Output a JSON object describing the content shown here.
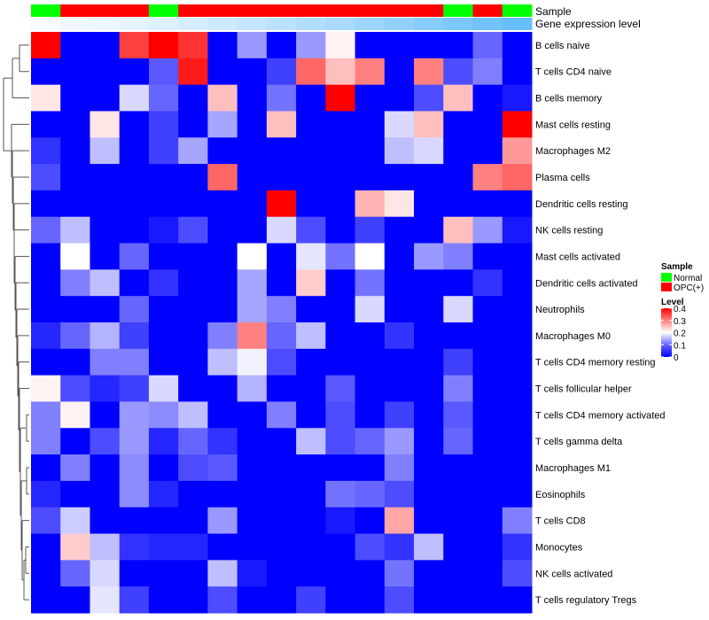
{
  "chart_data": {
    "type": "heatmap",
    "annotation_labels": {
      "sample": "Sample",
      "expression": "Gene expression level"
    },
    "rows": [
      "B cells naive",
      "T cells CD4 naive",
      "B cells memory",
      "Mast cells resting",
      "Macrophages M2",
      "Plasma cells",
      "Dendritic cells resting",
      "NK cells resting",
      "Mast cells activated",
      "Dendritic cells activated",
      "Neutrophils",
      "Macrophages M0",
      "T cells CD4 memory resting",
      "T cells follicular helper",
      "T cells CD4 memory activated",
      "T cells gamma delta",
      "Macrophages M1",
      "Eosinophils",
      "T cells CD8",
      "Monocytes",
      "NK cells activated",
      "T cells regulatory  Tregs"
    ],
    "samples": [
      "Normal",
      "OPC(+)",
      "OPC(+)",
      "OPC(+)",
      "Normal",
      "OPC(+)",
      "OPC(+)",
      "OPC(+)",
      "OPC(+)",
      "OPC(+)",
      "OPC(+)",
      "OPC(+)",
      "OPC(+)",
      "OPC(+)",
      "Normal",
      "OPC(+)",
      "Normal"
    ],
    "expression_level": [
      0.05,
      0.08,
      0.1,
      0.13,
      0.16,
      0.2,
      0.24,
      0.28,
      0.32,
      0.36,
      0.4,
      0.45,
      0.5,
      0.55,
      0.6,
      0.65,
      0.7
    ],
    "values": [
      [
        0.4,
        0,
        0,
        0.35,
        0.4,
        0.36,
        0,
        0.12,
        0,
        0.12,
        0.21,
        0,
        0,
        0,
        0,
        0.08,
        0
      ],
      [
        0,
        0,
        0,
        0,
        0.07,
        0.38,
        0,
        0,
        0.05,
        0.32,
        0.25,
        0.3,
        0,
        0.3,
        0.06,
        0.1,
        0
      ],
      [
        0.22,
        0,
        0,
        0.17,
        0.08,
        0,
        0.25,
        0,
        0.09,
        0,
        0.4,
        0,
        0,
        0.06,
        0.25,
        0,
        0.02
      ],
      [
        0,
        0,
        0.22,
        0,
        0.05,
        0,
        0.13,
        0,
        0.25,
        0,
        0,
        0,
        0.17,
        0.25,
        0,
        0,
        0.4
      ],
      [
        0.04,
        0,
        0.15,
        0,
        0.05,
        0.13,
        0,
        0,
        0,
        0,
        0,
        0,
        0.15,
        0.17,
        0,
        0,
        0.28
      ],
      [
        0.06,
        0,
        0,
        0,
        0,
        0,
        0.32,
        0,
        0,
        0,
        0,
        0,
        0,
        0,
        0,
        0.3,
        0.32
      ],
      [
        0,
        0,
        0,
        0,
        0,
        0,
        0,
        0,
        0.4,
        0,
        0,
        0.26,
        0.22,
        0,
        0,
        0,
        0
      ],
      [
        0.08,
        0.15,
        0,
        0,
        0.02,
        0.06,
        0,
        0,
        0.17,
        0.06,
        0,
        0.05,
        0,
        0,
        0.25,
        0.12,
        0.02
      ],
      [
        0,
        0.2,
        0,
        0.08,
        0,
        0,
        0,
        0.2,
        0,
        0.18,
        0.09,
        0.2,
        0,
        0.12,
        0.1,
        0,
        0
      ],
      [
        0,
        0.1,
        0.15,
        0,
        0.04,
        0,
        0,
        0.13,
        0,
        0.24,
        0,
        0.09,
        0,
        0,
        0,
        0.04,
        0
      ],
      [
        0,
        0,
        0,
        0.08,
        0,
        0,
        0,
        0.13,
        0.1,
        0,
        0,
        0.17,
        0,
        0,
        0.17,
        0,
        0
      ],
      [
        0.03,
        0.08,
        0.14,
        0.05,
        0,
        0,
        0.1,
        0.3,
        0.08,
        0.15,
        0,
        0,
        0.04,
        0,
        0,
        0,
        0
      ],
      [
        0,
        0,
        0.1,
        0.1,
        0,
        0,
        0.15,
        0.19,
        0.06,
        0,
        0,
        0,
        0,
        0,
        0.05,
        0,
        0
      ],
      [
        0.21,
        0.06,
        0.03,
        0.05,
        0.17,
        0,
        0,
        0.14,
        0,
        0,
        0.07,
        0,
        0,
        0,
        0.1,
        0,
        0
      ],
      [
        0.1,
        0.21,
        0,
        0.12,
        0.11,
        0.15,
        0,
        0,
        0.1,
        0,
        0.06,
        0,
        0.05,
        0,
        0.07,
        0,
        0
      ],
      [
        0.1,
        0,
        0.06,
        0.12,
        0.03,
        0.08,
        0.04,
        0,
        0,
        0.15,
        0.06,
        0.08,
        0.12,
        0,
        0.08,
        0,
        0
      ],
      [
        0,
        0.1,
        0,
        0.11,
        0,
        0.06,
        0.07,
        0,
        0,
        0,
        0,
        0,
        0.1,
        0,
        0,
        0,
        0
      ],
      [
        0.03,
        0,
        0,
        0.11,
        0.03,
        0,
        0,
        0,
        0,
        0,
        0.09,
        0.08,
        0.06,
        0,
        0,
        0,
        0
      ],
      [
        0.06,
        0.16,
        0,
        0,
        0,
        0,
        0.12,
        0,
        0,
        0,
        0.02,
        0,
        0.27,
        0,
        0,
        0,
        0.1
      ],
      [
        0,
        0.24,
        0.15,
        0.04,
        0.03,
        0.03,
        0,
        0,
        0,
        0,
        0,
        0.06,
        0.04,
        0.15,
        0,
        0,
        0.04
      ],
      [
        0,
        0.08,
        0.17,
        0,
        0,
        0,
        0.15,
        0.02,
        0,
        0,
        0,
        0,
        0.09,
        0,
        0,
        0,
        0.06
      ],
      [
        0,
        0,
        0.18,
        0.05,
        0,
        0,
        0.06,
        0,
        0,
        0.05,
        0,
        0,
        0.06,
        0,
        0,
        0,
        0
      ]
    ],
    "legend": {
      "sample_title": "Sample",
      "sample_entries": [
        {
          "label": "Normal",
          "color": "#00ff00"
        },
        {
          "label": "OPC(+)",
          "color": "#ff0000"
        }
      ],
      "level_title": "Level",
      "level_ticks": [
        "0.4",
        "0.3",
        "0.2",
        "0.1",
        "0"
      ],
      "level_tick_values": [
        0.4,
        0.3,
        0.2,
        0.1,
        0
      ]
    },
    "value_range": [
      0,
      0.4
    ],
    "colors": {
      "low": "#0000ff",
      "mid": "#ffffff",
      "high": "#ff0000"
    }
  }
}
